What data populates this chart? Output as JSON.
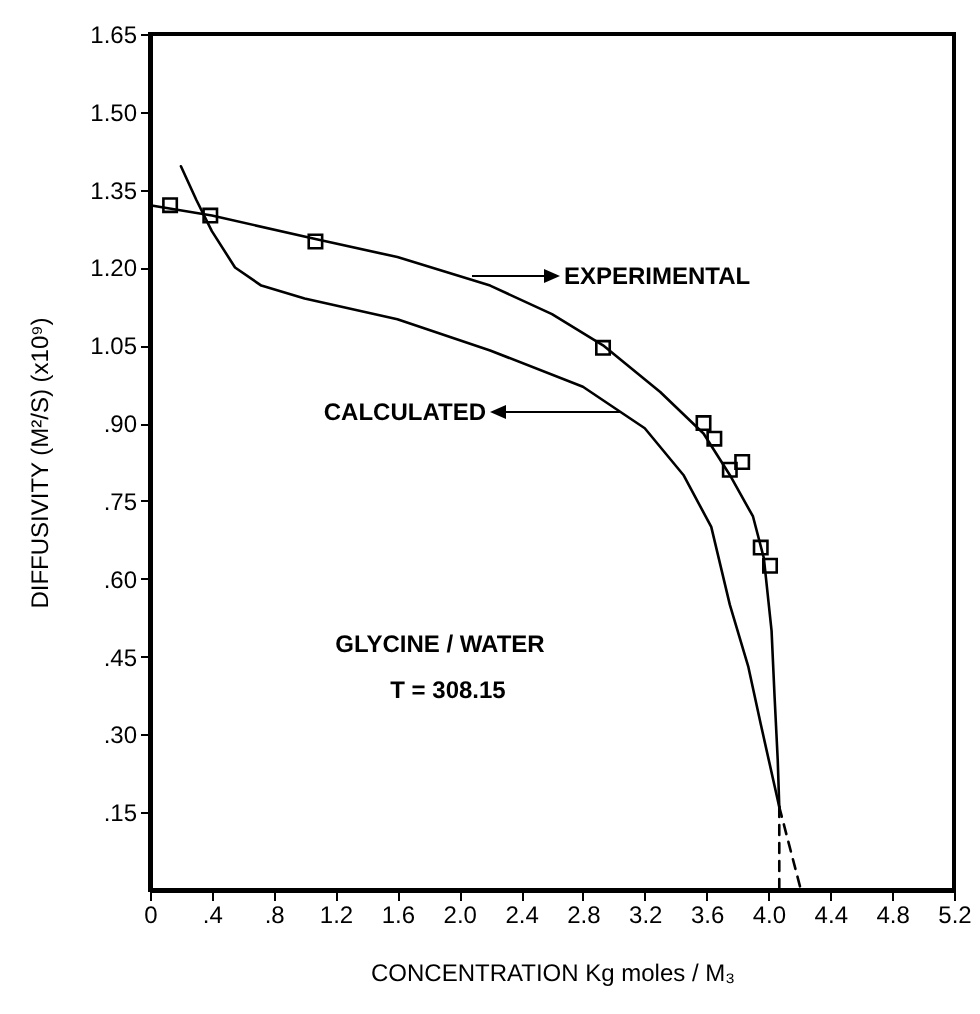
{
  "chart_data": {
    "type": "line",
    "xlabel": "CONCENTRATION   Kg moles / M₃",
    "ylabel": "DIFFUSIVITY  (M²/S)  (x10⁹)",
    "xlim": [
      0,
      5.2
    ],
    "ylim": [
      0,
      1.65
    ],
    "xticks": [
      {
        "value": 0,
        "label": "0"
      },
      {
        "value": 0.4,
        "label": ".4"
      },
      {
        "value": 0.8,
        "label": ".8"
      },
      {
        "value": 1.2,
        "label": "1.2"
      },
      {
        "value": 1.6,
        "label": "1.6"
      },
      {
        "value": 2,
        "label": "2.0"
      },
      {
        "value": 2.4,
        "label": "2.4"
      },
      {
        "value": 2.8,
        "label": "2.8"
      },
      {
        "value": 3.2,
        "label": "3.2"
      },
      {
        "value": 3.6,
        "label": "3.6"
      },
      {
        "value": 4,
        "label": "4.0"
      },
      {
        "value": 4.4,
        "label": "4.4"
      },
      {
        "value": 4.8,
        "label": "4.8"
      },
      {
        "value": 5.2,
        "label": "5.2"
      }
    ],
    "yticks": [
      {
        "value": 0.15,
        "label": ".15"
      },
      {
        "value": 0.3,
        "label": ".30"
      },
      {
        "value": 0.45,
        "label": ".45"
      },
      {
        "value": 0.6,
        "label": ".60"
      },
      {
        "value": 0.75,
        "label": ".75"
      },
      {
        "value": 0.9,
        "label": ".90"
      },
      {
        "value": 1.05,
        "label": "1.05"
      },
      {
        "value": 1.2,
        "label": "1.20"
      },
      {
        "value": 1.35,
        "label": "1.35"
      },
      {
        "value": 1.5,
        "label": "1.50"
      },
      {
        "value": 1.65,
        "label": "1.65"
      }
    ],
    "grid": false,
    "series": [
      {
        "color": "#000000",
        "line_style": "solid",
        "x": [
          0,
          0.4,
          1.07,
          1.6,
          2.2,
          2.6,
          2.93,
          3.3,
          3.58,
          3.75,
          3.9,
          3.97,
          4.02,
          4.04,
          4.06,
          4.07
        ],
        "values": [
          1.32,
          1.3,
          1.255,
          1.22,
          1.165,
          1.11,
          1.05,
          0.96,
          0.88,
          0.8,
          0.72,
          0.64,
          0.5,
          0.37,
          0.25,
          0.16
        ]
      },
      {
        "color": "#000000",
        "line_style": "solid",
        "x": [
          0.2,
          0.3,
          0.4,
          0.55,
          0.72,
          1.0,
          1.6,
          2.2,
          2.8,
          3.2,
          3.45,
          3.63,
          3.75,
          3.87,
          3.95,
          4.04,
          4.07
        ],
        "values": [
          1.395,
          1.33,
          1.27,
          1.2,
          1.165,
          1.14,
          1.1,
          1.04,
          0.97,
          0.89,
          0.8,
          0.7,
          0.55,
          0.43,
          0.32,
          0.2,
          0.16
        ]
      },
      {
        "type": "scatter",
        "color": "#000000",
        "marker": "square",
        "x": [
          0.13,
          0.39,
          1.07,
          2.93,
          3.58,
          3.65,
          3.75,
          3.83,
          3.95,
          4.01
        ],
        "values": [
          1.32,
          1.3,
          1.25,
          1.045,
          0.9,
          0.87,
          0.81,
          0.825,
          0.66,
          0.625
        ]
      },
      {
        "type": "line",
        "color": "#000000",
        "line_style": "dashed",
        "x": [
          4.07,
          4.07
        ],
        "values": [
          0.16,
          0
        ]
      },
      {
        "type": "line",
        "color": "#000000",
        "line_style": "dashed",
        "x": [
          4.07,
          4.21
        ],
        "values": [
          0.16,
          0
        ]
      }
    ],
    "annotations": [
      "EXPERIMENTAL",
      "CALCULATED",
      "GLYCINE / WATER",
      "T = 308.15"
    ]
  }
}
